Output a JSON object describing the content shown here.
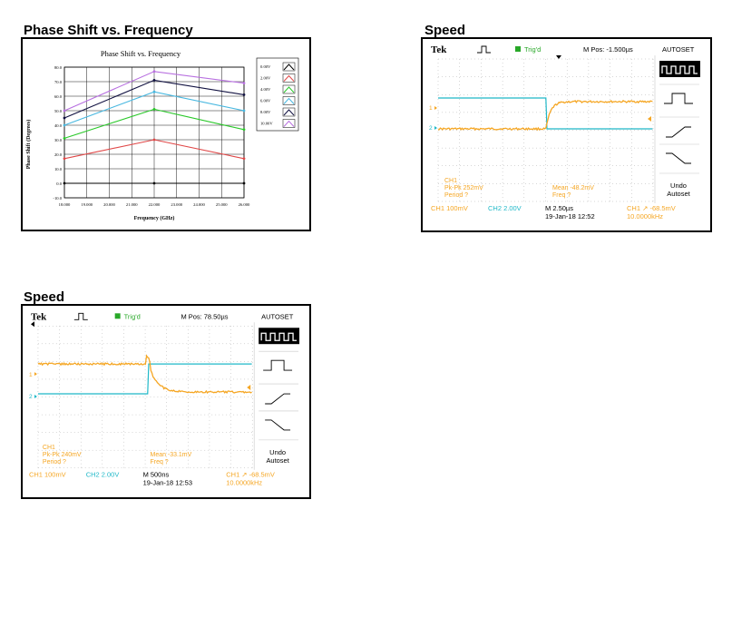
{
  "phase_panel": {
    "heading": "Phase Shift vs. Frequency",
    "chart_data": {
      "type": "line",
      "title": "Phase Shift vs. Frequency",
      "xlabel": "Frequency (GHz)",
      "ylabel": "Phase Shift (Degrees)",
      "x": [
        18,
        22,
        26
      ],
      "xlim": [
        18,
        26
      ],
      "ylim": [
        -10,
        80
      ],
      "x_ticks": [
        "18.000",
        "19.000",
        "20.000",
        "21.000",
        "22.000",
        "23.000",
        "24.000",
        "25.000",
        "26.000"
      ],
      "y_ticks": [
        "-10.0",
        "0.0",
        "10.0",
        "20.0",
        "30.0",
        "40.0",
        "50.0",
        "60.0",
        "70.0",
        "80.0"
      ],
      "grid": true,
      "legend_position": "right",
      "series": [
        {
          "name": "0.00V",
          "color": "#000000",
          "values": [
            0,
            0,
            0
          ]
        },
        {
          "name": "2.00V",
          "color": "#e04848",
          "values": [
            17,
            30,
            17
          ]
        },
        {
          "name": "4.00V",
          "color": "#28c828",
          "values": [
            31,
            51,
            37
          ]
        },
        {
          "name": "6.00V",
          "color": "#48b8e0",
          "values": [
            40,
            63,
            50
          ]
        },
        {
          "name": "8.00V",
          "color": "#101040",
          "values": [
            45,
            71,
            61
          ]
        },
        {
          "name": "10.00V",
          "color": "#b870e0",
          "values": [
            50,
            77,
            69
          ]
        }
      ]
    }
  },
  "scope1": {
    "heading": "Speed",
    "brand": "Tek",
    "trigger": "Trig'd",
    "mpos": "M Pos: -1.500µs",
    "autoset": "AUTOSET",
    "undo_line1": "Undo",
    "undo_line2": "Autoset",
    "ch_label": "CH1",
    "pkpk": "Pk-Pk 252mV",
    "period": "Period ?",
    "mean": "Mean -48.2mV",
    "freq": "Freq ?",
    "ch1_scale": "CH1  100mV",
    "ch2_scale": "CH2  2.00V",
    "timebase": "M 2.50µs",
    "date": "19-Jan-18 12:52",
    "trig_level": "CH1 ↗ -68.5mV",
    "trig_freq": "10.0000kHz",
    "ch1_marker": "1",
    "ch2_marker": "2",
    "colors": {
      "ch1": "#f5a623",
      "ch2": "#1fb8c8",
      "ink": "#000000"
    }
  },
  "scope2": {
    "heading": "Speed",
    "brand": "Tek",
    "trigger": "Trig'd",
    "mpos": "M Pos: 78.50µs",
    "autoset": "AUTOSET",
    "undo_line1": "Undo",
    "undo_line2": "Autoset",
    "ch_label": "CH1",
    "pkpk": "Pk-Pk 240mV",
    "period": "Period ?",
    "mean": "Mean -33.1mV",
    "freq": "Freq ?",
    "ch1_scale": "CH1  100mV",
    "ch2_scale": "CH2  2.00V",
    "timebase": "M 500ns",
    "date": "19-Jan-18 12:53",
    "trig_level": "CH1 ↗ -68.5mV",
    "trig_freq": "10.0000kHz",
    "ch1_marker": "1",
    "ch2_marker": "2",
    "colors": {
      "ch1": "#f5a623",
      "ch2": "#1fb8c8",
      "ink": "#000000"
    }
  }
}
